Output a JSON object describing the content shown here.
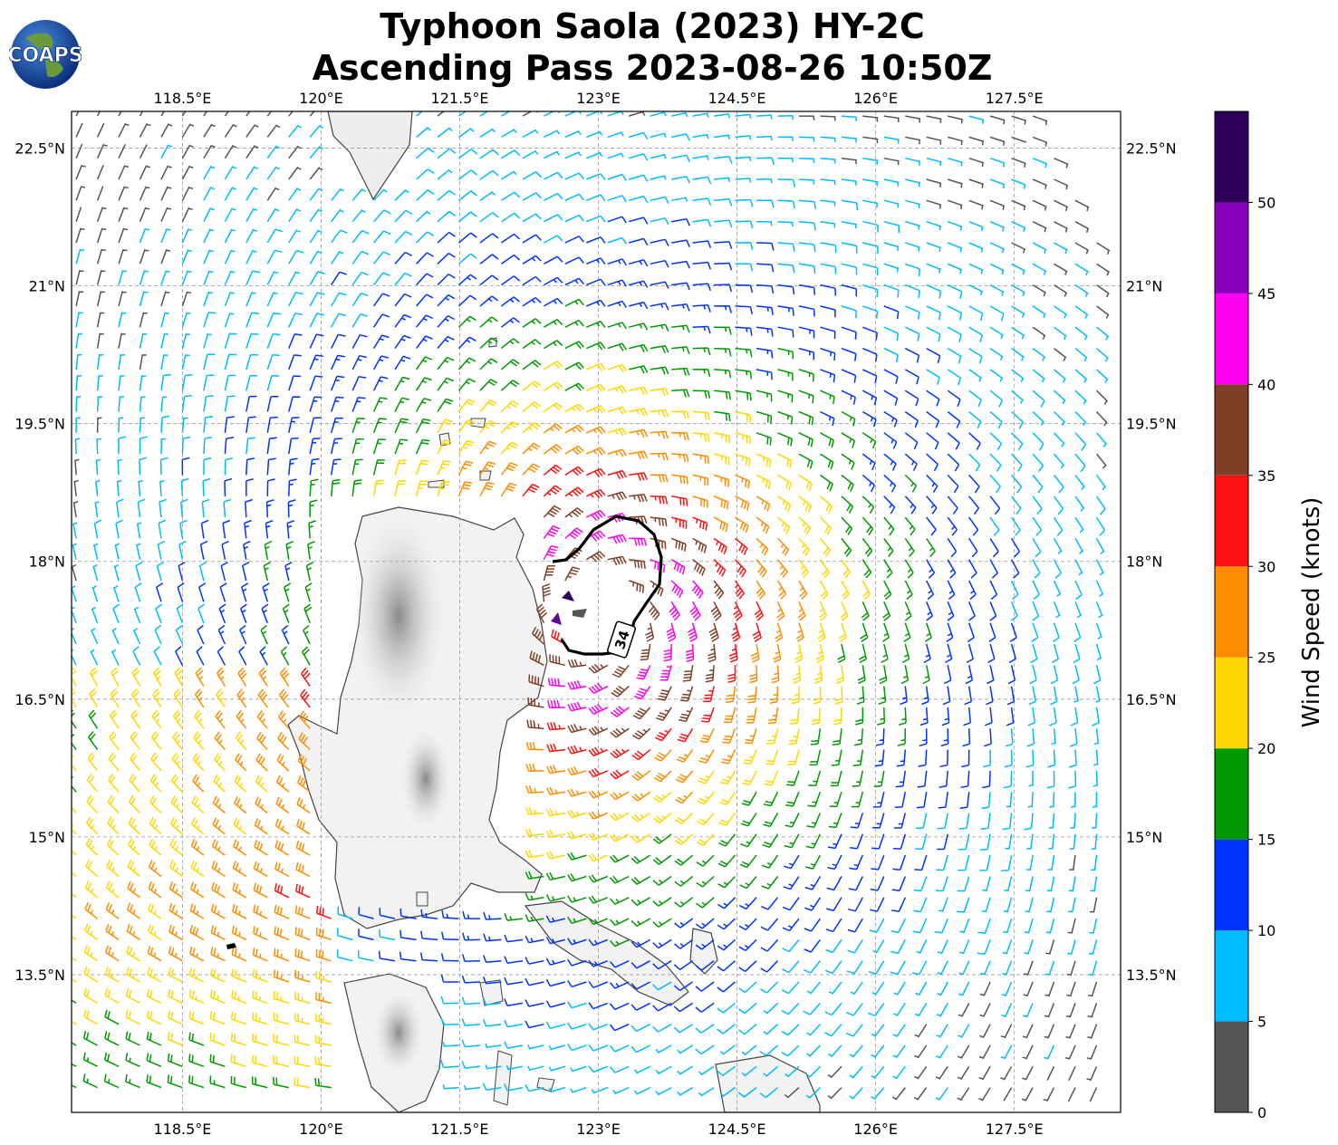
{
  "title": {
    "line1": "Typhoon Saola (2023) HY-2C",
    "line2": "Ascending Pass 2023-08-26 10:50Z"
  },
  "logo": {
    "text": "COAPS"
  },
  "map": {
    "lon_range": [
      117.3,
      128.65
    ],
    "lat_range": [
      12.0,
      22.9
    ],
    "lon_ticks": [
      {
        "value": 118.5,
        "label": "118.5°E"
      },
      {
        "value": 120.0,
        "label": "120°E"
      },
      {
        "value": 121.5,
        "label": "121.5°E"
      },
      {
        "value": 123.0,
        "label": "123°E"
      },
      {
        "value": 124.5,
        "label": "124.5°E"
      },
      {
        "value": 126.0,
        "label": "126°E"
      },
      {
        "value": 127.5,
        "label": "127.5°E"
      }
    ],
    "lat_ticks": [
      {
        "value": 22.5,
        "label": "22.5°N"
      },
      {
        "value": 21.0,
        "label": "21°N"
      },
      {
        "value": 19.5,
        "label": "19.5°N"
      },
      {
        "value": 18.0,
        "label": "18°N"
      },
      {
        "value": 16.5,
        "label": "16.5°N"
      },
      {
        "value": 15.0,
        "label": "15°N"
      },
      {
        "value": 13.5,
        "label": "13.5°N"
      }
    ],
    "grid": true,
    "storm_center": {
      "lon": 123.0,
      "lat": 17.4
    },
    "contour_label": "34"
  },
  "colorbar": {
    "label": "Wind Speed (knots)",
    "bins": [
      {
        "min": 0,
        "max": 5,
        "color": "#555555"
      },
      {
        "min": 5,
        "max": 10,
        "color": "#00bbff"
      },
      {
        "min": 10,
        "max": 15,
        "color": "#0033ff"
      },
      {
        "min": 15,
        "max": 20,
        "color": "#009900"
      },
      {
        "min": 20,
        "max": 25,
        "color": "#ffd700"
      },
      {
        "min": 25,
        "max": 30,
        "color": "#ff8c00"
      },
      {
        "min": 30,
        "max": 35,
        "color": "#ff1010"
      },
      {
        "min": 35,
        "max": 40,
        "color": "#7f3f26"
      },
      {
        "min": 40,
        "max": 45,
        "color": "#ff00ee"
      },
      {
        "min": 45,
        "max": 50,
        "color": "#8800bb"
      },
      {
        "min": 50,
        "max": 55,
        "color": "#2e0059"
      }
    ],
    "ticks": [
      "0",
      "5",
      "10",
      "15",
      "20",
      "25",
      "30",
      "35",
      "40",
      "45",
      "50"
    ]
  }
}
